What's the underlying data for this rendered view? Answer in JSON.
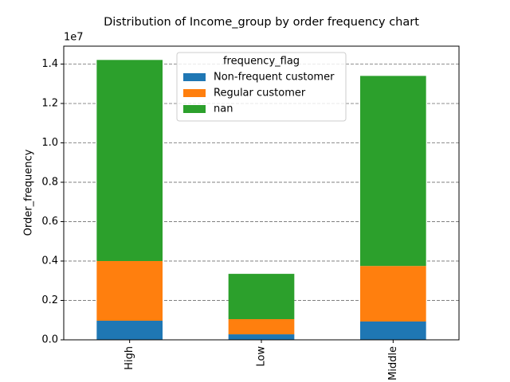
{
  "chart_data": {
    "type": "stacked_bar",
    "title": "Distribution of Income_group  by order frequency chart",
    "y_label": "Order_frequency",
    "y_offset_label": "1e7",
    "legend_title": "frequency_flag",
    "legend_position": "upper center",
    "grid": true,
    "categories": [
      "High",
      "Low",
      "Middle"
    ],
    "series": [
      {
        "name": "Non-frequent customer",
        "color": "#1f77b4",
        "values": [
          970000,
          280000,
          930000
        ]
      },
      {
        "name": "Regular customer",
        "color": "#ff7f0e",
        "values": [
          3030000,
          770000,
          2820000
        ]
      },
      {
        "name": "nan",
        "color": "#2ca02c",
        "values": [
          10210000,
          2300000,
          9650000
        ]
      }
    ],
    "ylim": [
      0,
      14910000
    ],
    "yticks": [
      {
        "value": 0,
        "label": "0.0"
      },
      {
        "value": 2000000,
        "label": "0.2"
      },
      {
        "value": 4000000,
        "label": "0.4"
      },
      {
        "value": 6000000,
        "label": "0.6"
      },
      {
        "value": 8000000,
        "label": "0.8"
      },
      {
        "value": 10000000,
        "label": "1.0"
      },
      {
        "value": 12000000,
        "label": "1.2"
      },
      {
        "value": 14000000,
        "label": "1.4"
      }
    ]
  }
}
